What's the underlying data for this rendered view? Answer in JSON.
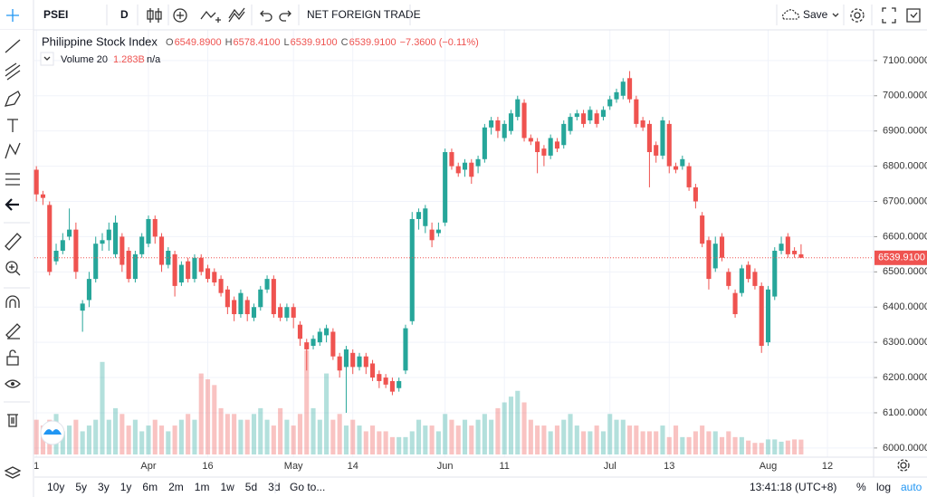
{
  "toolbar": {
    "symbol": "PSEI",
    "interval": "D",
    "study": "NET FOREIGN TRADE",
    "save": "Save"
  },
  "legend": {
    "title": "Philippine Stock Index",
    "ohlc": [
      {
        "key": "O",
        "value": "6549.8900"
      },
      {
        "key": "H",
        "value": "6578.4100"
      },
      {
        "key": "L",
        "value": "6539.9100"
      },
      {
        "key": "C",
        "value": "6539.9100"
      }
    ],
    "change": "−7.3600 (−0.11%)",
    "volume_name": "Volume 20",
    "volume_value": "1.283B",
    "volume_extra": "n/a"
  },
  "bottom_bar": {
    "ranges": [
      "10y",
      "5y",
      "3y",
      "1y",
      "6m",
      "2m",
      "1m",
      "1w",
      "5d",
      "3d"
    ],
    "goto": "Go to...",
    "clock": "13:41:18 (UTC+8)",
    "percent": "%",
    "log": "log",
    "auto": "auto"
  },
  "chart_data": {
    "type": "candlestick",
    "up_color": "#26a69a",
    "down_color": "#ef5350",
    "open": [
      6790,
      6720,
      6690,
      6530,
      6560,
      6600,
      6620,
      6390,
      6420,
      6480,
      6580,
      6590,
      6550,
      6600,
      6560,
      6480,
      6550,
      6580,
      6650,
      6600,
      6520,
      6550,
      6470,
      6530,
      6480,
      6540,
      6510,
      6500,
      6480,
      6450,
      6420,
      6380,
      6420,
      6370,
      6400,
      6450,
      6480,
      6400,
      6370,
      6400,
      6350,
      6300,
      6290,
      6300,
      6320,
      6330,
      6260,
      6230,
      6270,
      6230,
      6260,
      6240,
      6210,
      6200,
      6190,
      6170,
      6220,
      6360,
      6650,
      6630,
      6620,
      6610,
      6640,
      6840,
      6800,
      6790,
      6810,
      6800,
      6820,
      6910,
      6930,
      6880,
      6900,
      6940,
      6980,
      6880,
      6870,
      6850,
      6830,
      6870,
      6860,
      6900,
      6940,
      6950,
      6930,
      6950,
      6940,
      6970,
      6990,
      7000,
      7050,
      6990,
      6930,
      6920,
      6860,
      6830,
      6920,
      6800,
      6800,
      6800,
      6740,
      6660,
      6590,
      6510,
      6600,
      6500,
      6440,
      6440,
      6520,
      6500,
      6460,
      6300,
      6430,
      6560,
      6600,
      6560,
      6549.89
    ],
    "high": [
      6800,
      6730,
      6700,
      6580,
      6610,
      6680,
      6640,
      6420,
      6500,
      6600,
      6610,
      6640,
      6660,
      6610,
      6570,
      6560,
      6610,
      6660,
      6660,
      6610,
      6570,
      6560,
      6530,
      6540,
      6550,
      6550,
      6520,
      6510,
      6490,
      6460,
      6430,
      6450,
      6430,
      6410,
      6460,
      6490,
      6490,
      6410,
      6410,
      6410,
      6360,
      6310,
      6320,
      6340,
      6350,
      6340,
      6270,
      6290,
      6280,
      6270,
      6270,
      6250,
      6220,
      6210,
      6200,
      6200,
      6350,
      6670,
      6680,
      6690,
      6640,
      6640,
      6850,
      6850,
      6810,
      6820,
      6820,
      6830,
      6920,
      6940,
      6940,
      6930,
      6960,
      7000,
      6990,
      6890,
      6880,
      6860,
      6890,
      6880,
      6930,
      6950,
      6960,
      6960,
      6970,
      6960,
      6970,
      7000,
      7020,
      7050,
      7070,
      7000,
      6940,
      6930,
      6870,
      6940,
      6930,
      6810,
      6830,
      6810,
      6750,
      6670,
      6600,
      6600,
      6610,
      6510,
      6450,
      6520,
      6530,
      6510,
      6470,
      6460,
      6570,
      6600,
      6610,
      6570,
      6578.41
    ],
    "low": [
      6700,
      6690,
      6490,
      6520,
      6550,
      6590,
      6480,
      6330,
      6400,
      6470,
      6560,
      6560,
      6540,
      6500,
      6470,
      6470,
      6540,
      6570,
      6580,
      6500,
      6510,
      6430,
      6460,
      6470,
      6470,
      6490,
      6470,
      6460,
      6430,
      6380,
      6360,
      6370,
      6360,
      6360,
      6390,
      6440,
      6370,
      6360,
      6360,
      6340,
      6290,
      6220,
      6280,
      6290,
      6300,
      6250,
      6200,
      6100,
      6210,
      6220,
      6210,
      6190,
      6170,
      6170,
      6150,
      6160,
      6210,
      6350,
      6620,
      6610,
      6570,
      6600,
      6630,
      6790,
      6770,
      6770,
      6750,
      6780,
      6810,
      6890,
      6880,
      6870,
      6890,
      6930,
      6870,
      6860,
      6780,
      6800,
      6820,
      6840,
      6850,
      6890,
      6930,
      6910,
      6920,
      6910,
      6930,
      6960,
      6980,
      6990,
      6980,
      6910,
      6900,
      6740,
      6810,
      6820,
      6780,
      6780,
      6790,
      6730,
      6680,
      6570,
      6450,
      6500,
      6530,
      6450,
      6370,
      6430,
      6470,
      6450,
      6270,
      6290,
      6420,
      6550,
      6540,
      6540,
      6539.91
    ],
    "close": [
      6720,
      6710,
      6500,
      6560,
      6590,
      6620,
      6500,
      6410,
      6480,
      6580,
      6590,
      6620,
      6640,
      6520,
      6480,
      6550,
      6600,
      6650,
      6600,
      6520,
      6560,
      6460,
      6520,
      6480,
      6540,
      6500,
      6480,
      6470,
      6440,
      6400,
      6380,
      6440,
      6380,
      6400,
      6450,
      6480,
      6380,
      6370,
      6400,
      6370,
      6310,
      6280,
      6310,
      6330,
      6340,
      6260,
      6220,
      6280,
      6230,
      6260,
      6230,
      6200,
      6190,
      6180,
      6160,
      6190,
      6340,
      6650,
      6670,
      6680,
      6590,
      6620,
      6840,
      6800,
      6780,
      6810,
      6770,
      6820,
      6910,
      6930,
      6900,
      6920,
      6950,
      6990,
      6880,
      6870,
      6840,
      6830,
      6880,
      6850,
      6920,
      6940,
      6950,
      6920,
      6960,
      6920,
      6960,
      6990,
      7010,
      7040,
      6990,
      6920,
      6910,
      6840,
      6830,
      6930,
      6800,
      6790,
      6820,
      6740,
      6700,
      6580,
      6480,
      6580,
      6540,
      6460,
      6380,
      6510,
      6480,
      6460,
      6290,
      6450,
      6560,
      6580,
      6550,
      6550,
      6539.91
    ],
    "volume": [
      3,
      2.5,
      3,
      3.5,
      2,
      2.5,
      3,
      2,
      2.5,
      3,
      8,
      3,
      4,
      3.5,
      2.5,
      3,
      2,
      2.5,
      3,
      2.5,
      2,
      2.5,
      3,
      3.5,
      3,
      7,
      6.5,
      6,
      4,
      3.5,
      3.5,
      3,
      3,
      3.5,
      4,
      3,
      2.5,
      4,
      3,
      2.5,
      3.5,
      9,
      4,
      3,
      7,
      3,
      3.5,
      2.5,
      3,
      2.5,
      2,
      2.5,
      2,
      2,
      1.5,
      1.5,
      1.5,
      2,
      3,
      2.5,
      2.5,
      2,
      3.5,
      3,
      2.5,
      3,
      2.5,
      3,
      3.5,
      3,
      4,
      4.5,
      5,
      5.5,
      4.5,
      3,
      2.5,
      2.5,
      2,
      2.5,
      3,
      3.5,
      2.5,
      2,
      2,
      2.5,
      2,
      3.5,
      3,
      3,
      2.5,
      2.5,
      2,
      2,
      2,
      2.5,
      1.5,
      2.5,
      1.5,
      1.5,
      2,
      2.5,
      2,
      2,
      1.5,
      2,
      1.5,
      1.5,
      1.2,
      1,
      1,
      1.3,
      1.3,
      1.1,
      1.2,
      1.3,
      1.283
    ],
    "xlim": [
      -0.3,
      127
    ],
    "xticks": [
      {
        "value": 0,
        "label": "1"
      },
      {
        "value": 17,
        "label": "Apr"
      },
      {
        "value": 26,
        "label": "16"
      },
      {
        "value": 39,
        "label": "May"
      },
      {
        "value": 48,
        "label": "14"
      },
      {
        "value": 62,
        "label": "Jun"
      },
      {
        "value": 71,
        "label": "11"
      },
      {
        "value": 87,
        "label": "Jul"
      },
      {
        "value": 96,
        "label": "13"
      },
      {
        "value": 111,
        "label": "Aug"
      },
      {
        "value": 120,
        "label": "12"
      }
    ],
    "ylim": [
      5974,
      7187
    ],
    "yticks": [
      {
        "value": 6000,
        "label": "6000.0000"
      },
      {
        "value": 6100,
        "label": "6100.0000"
      },
      {
        "value": 6200,
        "label": "6200.0000"
      },
      {
        "value": 6300,
        "label": "6300.0000"
      },
      {
        "value": 6400,
        "label": "6400.0000"
      },
      {
        "value": 6500,
        "label": "6500.0000"
      },
      {
        "value": 6600,
        "label": "6600.0000"
      },
      {
        "value": 6700,
        "label": "6700.0000"
      },
      {
        "value": 6800,
        "label": "6800.0000"
      },
      {
        "value": 6900,
        "label": "6900.0000"
      },
      {
        "value": 7000,
        "label": "7000.0000"
      },
      {
        "value": 7100,
        "label": "7100.0000"
      }
    ],
    "last_price_label": "6539.9100",
    "grid": true
  }
}
